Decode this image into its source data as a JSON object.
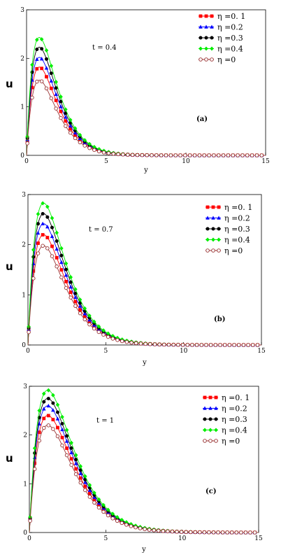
{
  "chart_data": [
    {
      "type": "line",
      "panel_label": "(a)",
      "annotation": "t = 0.4",
      "xlabel": "y",
      "ylabel": "u",
      "xlim": [
        0,
        15
      ],
      "ylim": [
        0,
        3
      ],
      "xticks": [
        "0",
        "5",
        "10",
        "15"
      ],
      "yticks": [
        "0",
        "1",
        "2",
        "3"
      ],
      "legend_position": "top-right",
      "series": [
        {
          "name": "η =0. 1",
          "color": "#ff0000",
          "marker": "square",
          "peak_x": 0.8,
          "peak_y": 1.82
        },
        {
          "name": "η =0.2",
          "color": "#0000ff",
          "marker": "triangle",
          "peak_x": 0.8,
          "peak_y": 2.02
        },
        {
          "name": "η =0.3",
          "color": "#000000",
          "marker": "circle",
          "peak_x": 0.8,
          "peak_y": 2.23
        },
        {
          "name": "η =0.4",
          "color": "#00ee00",
          "marker": "diamond",
          "peak_x": 0.8,
          "peak_y": 2.43
        },
        {
          "name": "η =0",
          "color": "#993333",
          "marker": "open-circle",
          "peak_x": 0.8,
          "peak_y": 1.55
        }
      ]
    },
    {
      "type": "line",
      "panel_label": "(b)",
      "annotation": "t = 0.7",
      "xlabel": "y",
      "ylabel": "u",
      "xlim": [
        0,
        15
      ],
      "ylim": [
        0,
        3
      ],
      "xticks": [
        "0",
        "5",
        "10",
        "15"
      ],
      "yticks": [
        "0",
        "1",
        "2",
        "3"
      ],
      "legend_position": "top-right",
      "series": [
        {
          "name": "η =0. 1",
          "color": "#ff0000",
          "marker": "square",
          "peak_x": 1.0,
          "peak_y": 2.2
        },
        {
          "name": "η =0.2",
          "color": "#0000ff",
          "marker": "triangle",
          "peak_x": 1.0,
          "peak_y": 2.42
        },
        {
          "name": "η =0.3",
          "color": "#000000",
          "marker": "circle",
          "peak_x": 1.0,
          "peak_y": 2.62
        },
        {
          "name": "η =0.4",
          "color": "#00ee00",
          "marker": "diamond",
          "peak_x": 1.0,
          "peak_y": 2.83
        },
        {
          "name": "η =0",
          "color": "#993333",
          "marker": "open-circle",
          "peak_x": 1.0,
          "peak_y": 1.98
        }
      ]
    },
    {
      "type": "line",
      "panel_label": "(c)",
      "annotation": "t = 1",
      "xlabel": "y",
      "ylabel": "u",
      "xlim": [
        0,
        15
      ],
      "ylim": [
        0,
        3
      ],
      "xticks": [
        "0",
        "5",
        "10",
        "15"
      ],
      "yticks": [
        "0",
        "1",
        "2",
        "3"
      ],
      "legend_position": "top-right",
      "series": [
        {
          "name": "η =0. 1",
          "color": "#ff0000",
          "marker": "square",
          "peak_x": 1.2,
          "peak_y": 2.4
        },
        {
          "name": "η =0.2",
          "color": "#0000ff",
          "marker": "triangle",
          "peak_x": 1.2,
          "peak_y": 2.6
        },
        {
          "name": "η =0.3",
          "color": "#000000",
          "marker": "circle",
          "peak_x": 1.2,
          "peak_y": 2.75
        },
        {
          "name": "η =0.4",
          "color": "#00ee00",
          "marker": "diamond",
          "peak_x": 1.2,
          "peak_y": 2.92
        },
        {
          "name": "η =0",
          "color": "#993333",
          "marker": "open-circle",
          "peak_x": 1.2,
          "peak_y": 2.2
        }
      ]
    }
  ]
}
